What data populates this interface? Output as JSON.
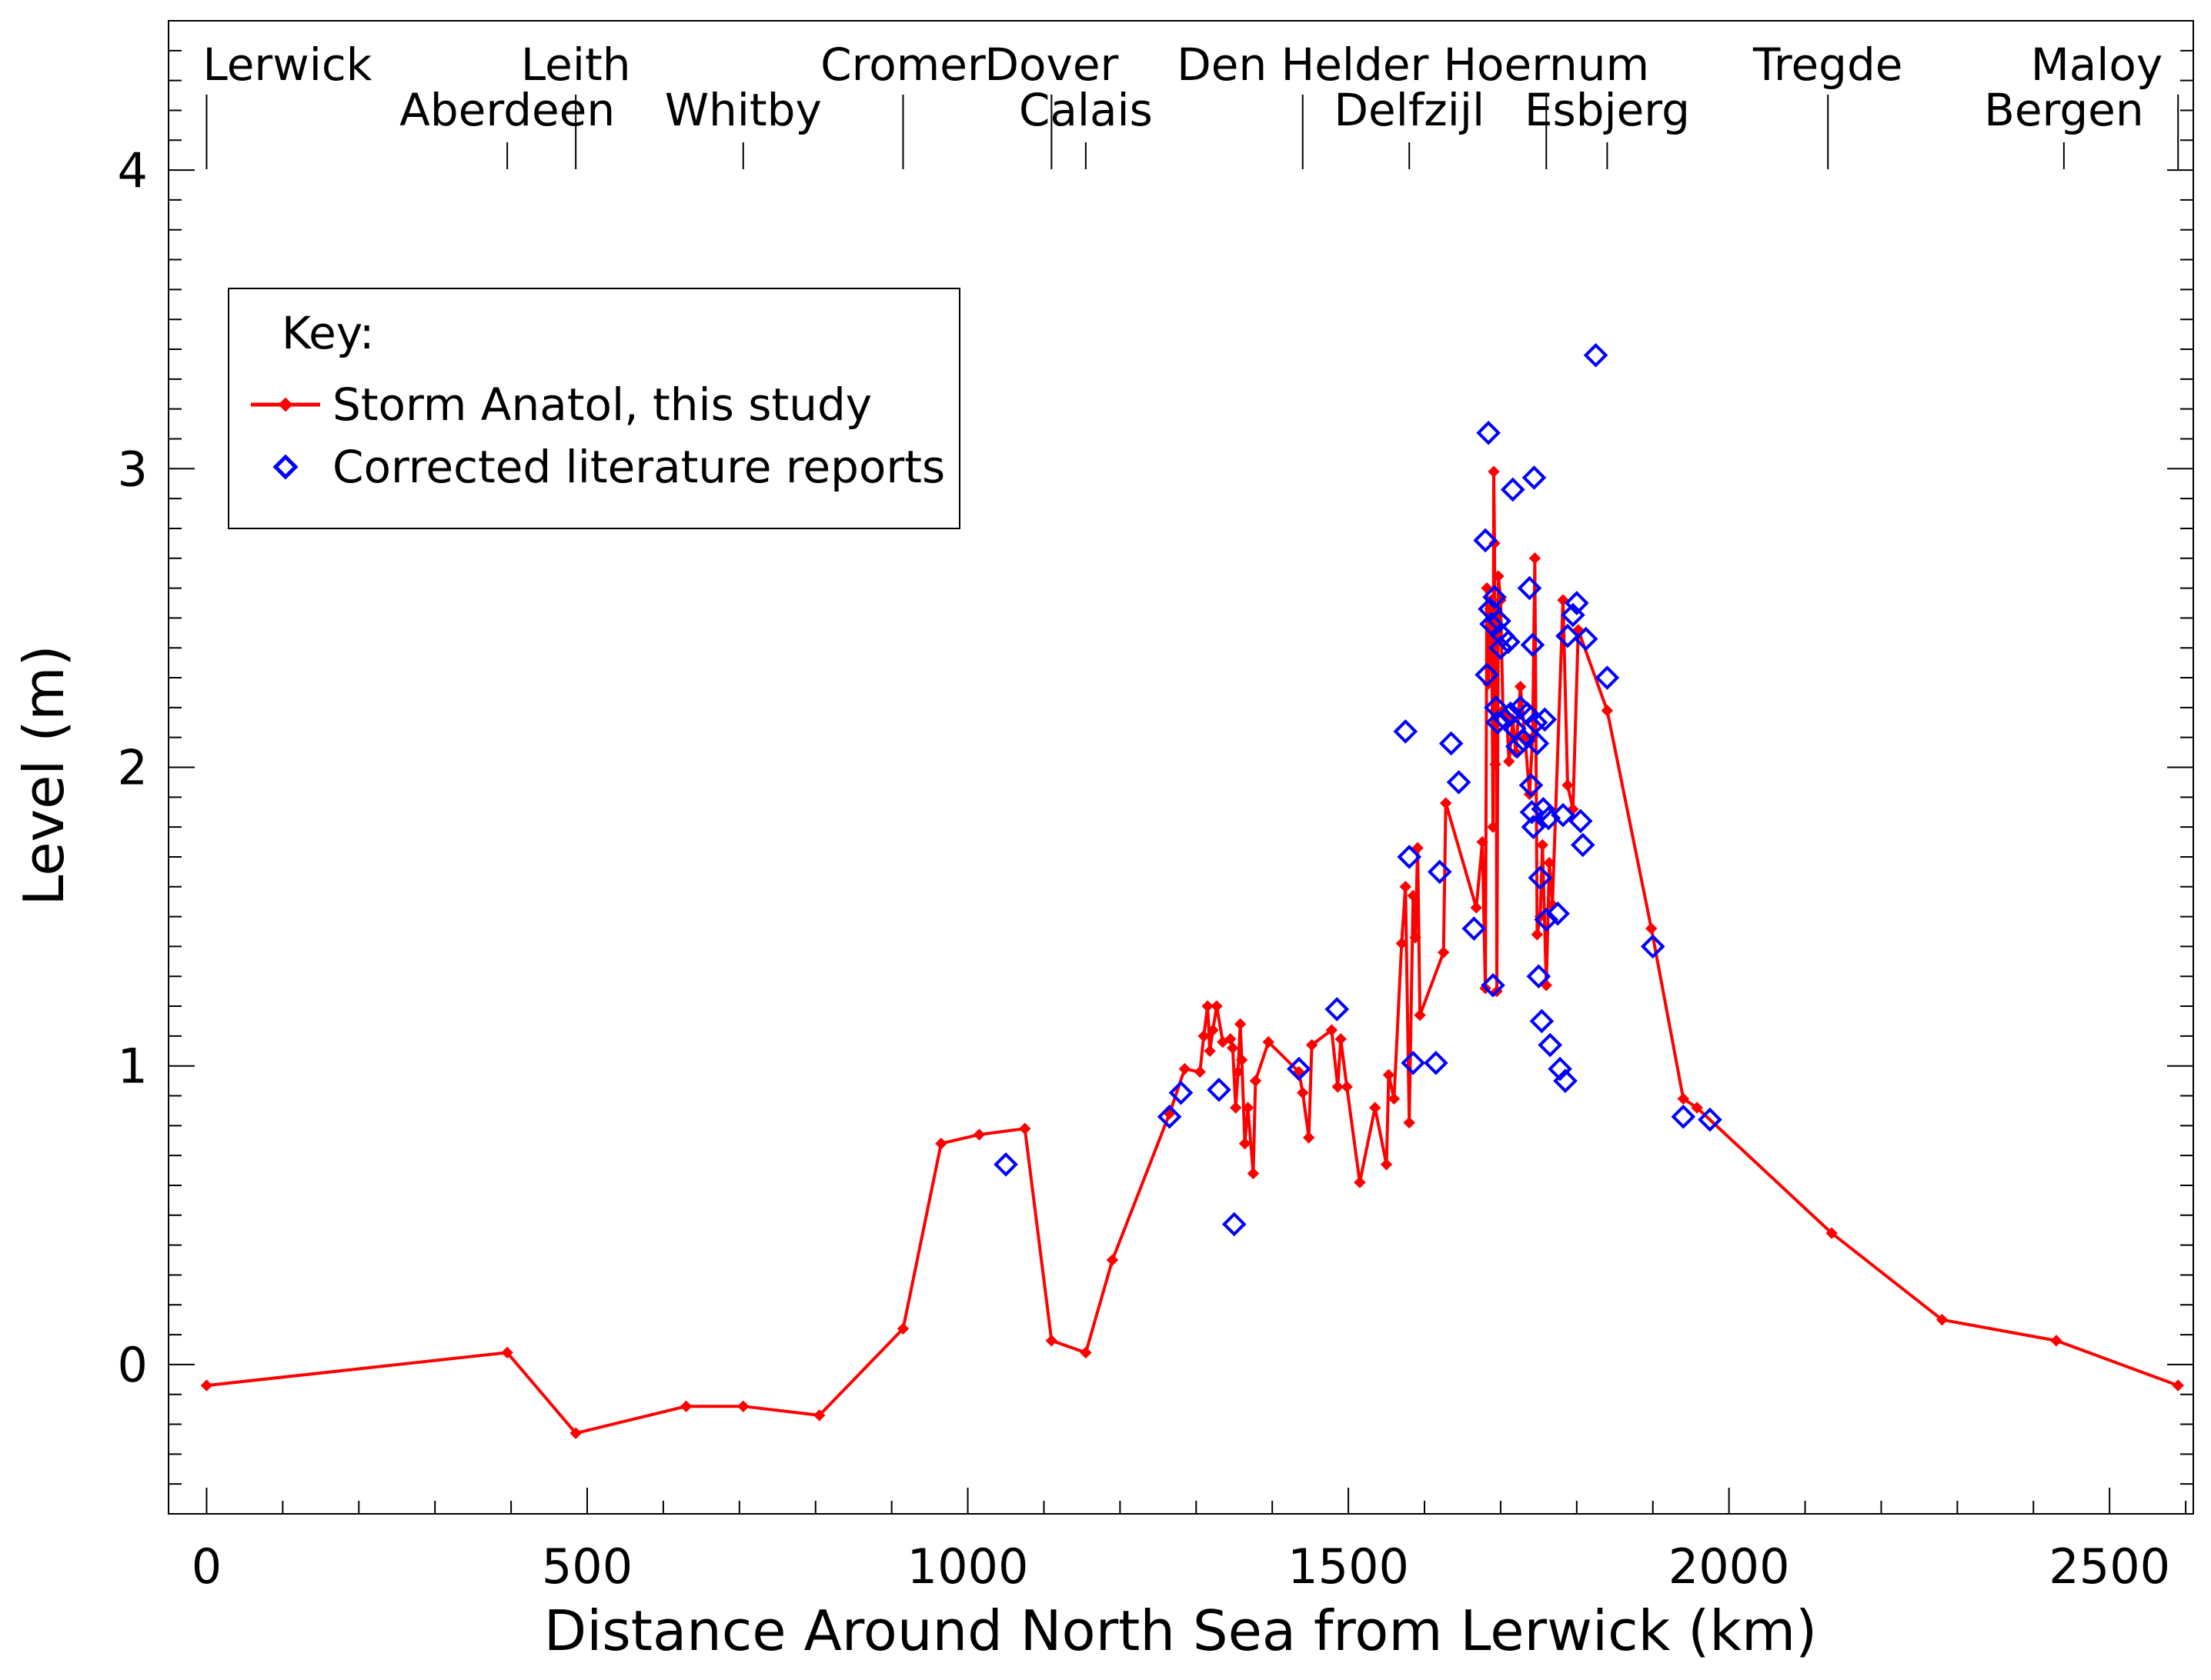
{
  "chart_data": {
    "type": "scatter",
    "title": "",
    "xlabel": "Distance Around North Sea from Lerwick (km)",
    "ylabel": "Level (m)",
    "xlim": [
      -50,
      2610
    ],
    "ylim": [
      -0.5,
      4.5
    ],
    "x_ticks": [
      0,
      500,
      1000,
      1500,
      2000,
      2500
    ],
    "y_ticks": [
      0,
      1,
      2,
      3,
      4
    ],
    "grid": false,
    "legend": {
      "title": "Key:",
      "placement": "upper-left",
      "entries": [
        "Storm Anatol, this study",
        "Corrected literature reports"
      ]
    },
    "station_labels": [
      {
        "name": "Lerwick",
        "x": 0,
        "row": 1
      },
      {
        "name": "Aberdeen",
        "x": 395,
        "row": 2
      },
      {
        "name": "Leith",
        "x": 485,
        "row": 1
      },
      {
        "name": "Whitby",
        "x": 705,
        "row": 2
      },
      {
        "name": "Cromer",
        "x": 915,
        "row": 1
      },
      {
        "name": "Dover",
        "x": 1110,
        "row": 1
      },
      {
        "name": "Calais",
        "x": 1155,
        "row": 2
      },
      {
        "name": "Den Helder",
        "x": 1440,
        "row": 1
      },
      {
        "name": "Delfzijl",
        "x": 1580,
        "row": 2
      },
      {
        "name": "Hoernum",
        "x": 1760,
        "row": 1
      },
      {
        "name": "Esbjerg",
        "x": 1840,
        "row": 2
      },
      {
        "name": "Tregde",
        "x": 2130,
        "row": 1
      },
      {
        "name": "Bergen",
        "x": 2440,
        "row": 2
      },
      {
        "name": "Maloy",
        "x": 2590,
        "row": 1
      }
    ],
    "series": [
      {
        "name": "Storm Anatol, this study",
        "style": "line-diamond",
        "color": "#ff0000",
        "points": [
          [
            0,
            -0.07
          ],
          [
            395,
            0.04
          ],
          [
            485,
            -0.23
          ],
          [
            630,
            -0.14
          ],
          [
            705,
            -0.14
          ],
          [
            805,
            -0.17
          ],
          [
            915,
            0.12
          ],
          [
            965,
            0.74
          ],
          [
            1015,
            0.77
          ],
          [
            1075,
            0.79
          ],
          [
            1110,
            0.08
          ],
          [
            1155,
            0.04
          ],
          [
            1190,
            0.35
          ],
          [
            1265,
            0.84
          ],
          [
            1285,
            0.99
          ],
          [
            1305,
            0.98
          ],
          [
            1310,
            1.1
          ],
          [
            1315,
            1.2
          ],
          [
            1318,
            1.05
          ],
          [
            1322,
            1.12
          ],
          [
            1327,
            1.2
          ],
          [
            1335,
            1.08
          ],
          [
            1345,
            1.09
          ],
          [
            1348,
            1.06
          ],
          [
            1352,
            0.86
          ],
          [
            1355,
            0.98
          ],
          [
            1358,
            1.14
          ],
          [
            1360,
            1.02
          ],
          [
            1364,
            0.74
          ],
          [
            1368,
            0.86
          ],
          [
            1375,
            0.64
          ],
          [
            1378,
            0.95
          ],
          [
            1395,
            1.08
          ],
          [
            1435,
            0.98
          ],
          [
            1440,
            0.91
          ],
          [
            1448,
            0.76
          ],
          [
            1452,
            1.07
          ],
          [
            1478,
            1.12
          ],
          [
            1486,
            0.93
          ],
          [
            1490,
            1.09
          ],
          [
            1498,
            0.93
          ],
          [
            1515,
            0.61
          ],
          [
            1535,
            0.86
          ],
          [
            1550,
            0.67
          ],
          [
            1553,
            0.97
          ],
          [
            1560,
            0.89
          ],
          [
            1570,
            1.41
          ],
          [
            1575,
            1.6
          ],
          [
            1580,
            0.81
          ],
          [
            1585,
            1.57
          ],
          [
            1588,
            1.43
          ],
          [
            1591,
            1.73
          ],
          [
            1594,
            1.17
          ],
          [
            1625,
            1.38
          ],
          [
            1628,
            1.88
          ],
          [
            1668,
            1.53
          ],
          [
            1676,
            1.75
          ],
          [
            1680,
            1.26
          ],
          [
            1682,
            2.6
          ],
          [
            1684,
            2.28
          ],
          [
            1686,
            2.53
          ],
          [
            1688,
            2.56
          ],
          [
            1690,
            1.8
          ],
          [
            1691,
            2.99
          ],
          [
            1692,
            2.75
          ],
          [
            1693,
            2.01
          ],
          [
            1694,
            2.52
          ],
          [
            1695,
            1.25
          ],
          [
            1697,
            2.64
          ],
          [
            1700,
            2.56
          ],
          [
            1703,
            2.19
          ],
          [
            1708,
            2.17
          ],
          [
            1711,
            2.02
          ],
          [
            1716,
            2.16
          ],
          [
            1720,
            2.05
          ],
          [
            1726,
            2.27
          ],
          [
            1732,
            2.1
          ],
          [
            1738,
            1.91
          ],
          [
            1742,
            2.1
          ],
          [
            1745,
            2.7
          ],
          [
            1748,
            1.44
          ],
          [
            1752,
            1.5
          ],
          [
            1755,
            1.74
          ],
          [
            1760,
            1.27
          ],
          [
            1764,
            1.68
          ],
          [
            1768,
            1.54
          ],
          [
            1782,
            2.56
          ],
          [
            1788,
            1.94
          ],
          [
            1795,
            1.86
          ],
          [
            1802,
            2.46
          ],
          [
            1840,
            2.19
          ],
          [
            1898,
            1.46
          ],
          [
            1940,
            0.89
          ],
          [
            1958,
            0.86
          ],
          [
            2135,
            0.44
          ],
          [
            2280,
            0.15
          ],
          [
            2430,
            0.08
          ],
          [
            2590,
            -0.07
          ]
        ]
      },
      {
        "name": "Corrected literature reports",
        "style": "open-diamond",
        "color": "#0000ff",
        "points": [
          [
            1050,
            0.67
          ],
          [
            1265,
            0.83
          ],
          [
            1280,
            0.91
          ],
          [
            1330,
            0.92
          ],
          [
            1350,
            0.47
          ],
          [
            1435,
            0.99
          ],
          [
            1485,
            1.19
          ],
          [
            1575,
            2.12
          ],
          [
            1580,
            1.7
          ],
          [
            1585,
            1.01
          ],
          [
            1615,
            1.01
          ],
          [
            1620,
            1.65
          ],
          [
            1635,
            2.08
          ],
          [
            1645,
            1.95
          ],
          [
            1665,
            1.46
          ],
          [
            1680,
            2.76
          ],
          [
            1682,
            2.31
          ],
          [
            1684,
            3.12
          ],
          [
            1686,
            2.53
          ],
          [
            1688,
            2.48
          ],
          [
            1690,
            1.27
          ],
          [
            1692,
            2.57
          ],
          [
            1694,
            2.2
          ],
          [
            1696,
            2.15
          ],
          [
            1698,
            2.49
          ],
          [
            1700,
            2.4
          ],
          [
            1703,
            2.44
          ],
          [
            1706,
            2.16
          ],
          [
            1710,
            2.42
          ],
          [
            1713,
            2.18
          ],
          [
            1716,
            2.93
          ],
          [
            1718,
            2.13
          ],
          [
            1722,
            2.07
          ],
          [
            1726,
            2.2
          ],
          [
            1730,
            2.09
          ],
          [
            1735,
            2.18
          ],
          [
            1738,
            2.6
          ],
          [
            1740,
            1.94
          ],
          [
            1741,
            1.85
          ],
          [
            1742,
            2.41
          ],
          [
            1743,
            1.8
          ],
          [
            1744,
            2.97
          ],
          [
            1746,
            2.15
          ],
          [
            1748,
            2.08
          ],
          [
            1750,
            1.3
          ],
          [
            1752,
            1.63
          ],
          [
            1754,
            1.15
          ],
          [
            1756,
            1.86
          ],
          [
            1758,
            2.16
          ],
          [
            1760,
            1.49
          ],
          [
            1763,
            1.83
          ],
          [
            1765,
            1.07
          ],
          [
            1775,
            1.51
          ],
          [
            1778,
            0.99
          ],
          [
            1782,
            1.84
          ],
          [
            1785,
            0.95
          ],
          [
            1788,
            2.44
          ],
          [
            1795,
            2.51
          ],
          [
            1800,
            2.55
          ],
          [
            1805,
            1.82
          ],
          [
            1808,
            1.74
          ],
          [
            1812,
            2.43
          ],
          [
            1825,
            3.38
          ],
          [
            1840,
            2.3
          ],
          [
            1900,
            1.4
          ],
          [
            1940,
            0.83
          ],
          [
            1975,
            0.82
          ]
        ]
      }
    ]
  }
}
